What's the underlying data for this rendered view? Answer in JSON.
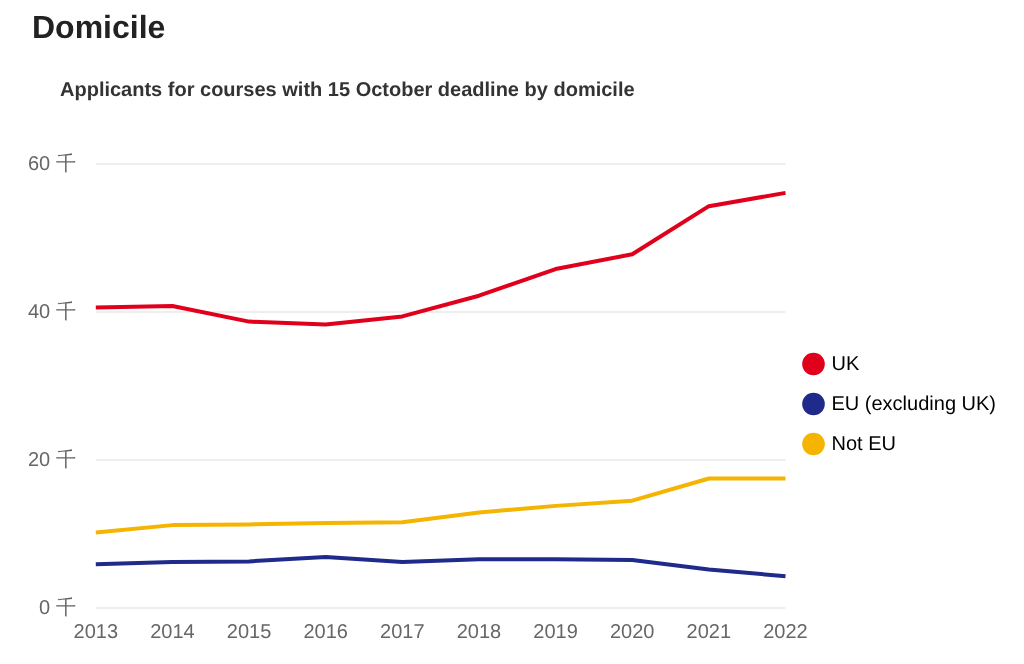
{
  "chart_data": {
    "type": "line",
    "title": "Domicile",
    "subtitle": "Applicants for courses with 15 October deadline  by domicile",
    "categories": [
      "2013",
      "2014",
      "2015",
      "2016",
      "2017",
      "2018",
      "2019",
      "2020",
      "2021",
      "2022"
    ],
    "series": [
      {
        "name": "UK",
        "color": "#e0001b",
        "values": [
          40.6,
          40.8,
          38.7,
          38.3,
          39.4,
          42.2,
          45.8,
          47.8,
          54.3,
          56.1
        ]
      },
      {
        "name": "EU (excluding UK)",
        "color": "#1f2a8a",
        "values": [
          5.9,
          6.2,
          6.3,
          6.9,
          6.2,
          6.6,
          6.6,
          6.5,
          5.2,
          4.3
        ]
      },
      {
        "name": "Not EU",
        "color": "#f5b400",
        "values": [
          10.2,
          11.2,
          11.3,
          11.5,
          11.6,
          12.9,
          13.8,
          14.5,
          17.5,
          17.5
        ]
      }
    ],
    "ylim": [
      0,
      60
    ],
    "yticks": [
      {
        "value": 0,
        "label": "0 千"
      },
      {
        "value": 20,
        "label": "20 千"
      },
      {
        "value": 40,
        "label": "40 千"
      },
      {
        "value": 60,
        "label": "60 千"
      }
    ],
    "grid": "y",
    "legend": "right",
    "marker": "none",
    "line_style": "solid"
  }
}
